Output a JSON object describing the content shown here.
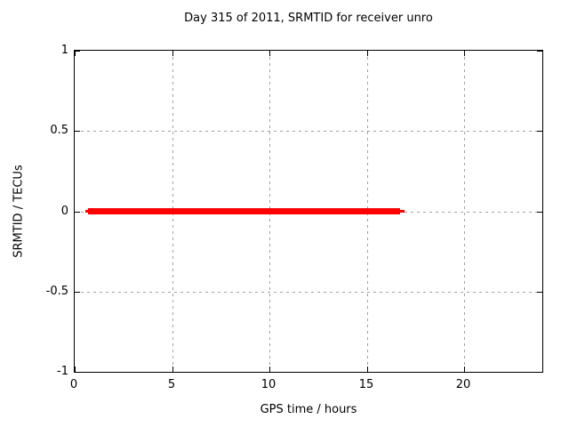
{
  "chart_data": {
    "type": "line",
    "title": "Day 315 of 2011, SRMTID for receiver unro",
    "xlabel": "GPS time / hours",
    "ylabel": "SRMTID / TECUs",
    "xlim": [
      0,
      24
    ],
    "ylim": [
      -1,
      1
    ],
    "xtick_values": [
      0,
      5,
      10,
      15,
      20
    ],
    "xtick_labels": [
      "0",
      "5",
      "10",
      "15",
      "20"
    ],
    "ytick_values": [
      1,
      0.5,
      0,
      -0.5,
      -1
    ],
    "ytick_labels": [
      "1",
      "0.5",
      "0",
      "-0.5",
      "-1"
    ],
    "grid": true,
    "grid_style": "dashed",
    "legend": "none",
    "series": [
      {
        "name": "SRMTID",
        "color": "#ff0000",
        "description": "Constant value 0 TECUs from about 0.6 h to 16.9 h GPS time, drawn as a thick red horizontal line at y=0",
        "y_value": 0,
        "x_start_hours": 0.55,
        "x_end_hours": 16.95,
        "segments": [
          {
            "x_start": 0.55,
            "x_end": 0.68,
            "y": 0,
            "thickness_px": 3
          },
          {
            "x_start": 0.68,
            "x_end": 16.72,
            "y": 0,
            "thickness_px": 7
          },
          {
            "x_start": 16.72,
            "x_end": 16.95,
            "y": 0,
            "thickness_px": 3
          }
        ]
      }
    ]
  },
  "colors": {
    "background": "#ffffff",
    "axis": "#000000",
    "grid": "#a0a0a0",
    "text": "#000000",
    "series": "#ff0000"
  }
}
